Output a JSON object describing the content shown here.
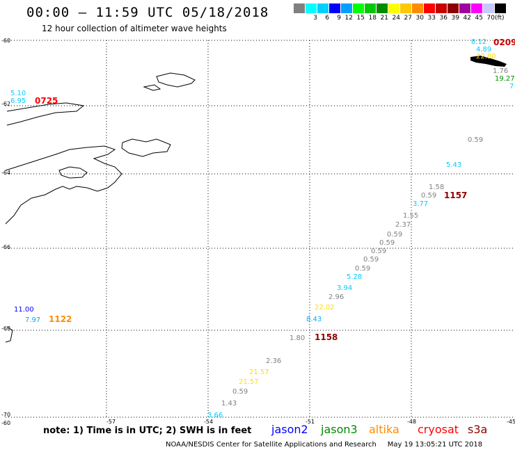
{
  "header": {
    "title": "00:00 – 11:59 UTC 05/18/2018",
    "subtitle": "12 hour collection of altimeter wave heights"
  },
  "scale": {
    "colors": [
      "#808080",
      "#00ffff",
      "#00cfff",
      "#0000ff",
      "#00a0ff",
      "#00ff00",
      "#00c800",
      "#008c00",
      "#ffff00",
      "#ffc800",
      "#ff8c00",
      "#ff0000",
      "#c80000",
      "#8c0000",
      "#a000a0",
      "#ff00ff",
      "#c8c8ff",
      "#000000"
    ],
    "labels": [
      "3",
      "6",
      "9",
      "12",
      "15",
      "18",
      "21",
      "24",
      "27",
      "30",
      "33",
      "36",
      "39",
      "42",
      "45",
      "70"
    ],
    "unit": "(ft)"
  },
  "grid": {
    "lon_labels": [
      "-57",
      "-54",
      "-51",
      "-48",
      "-45"
    ],
    "lat_labels": [
      "-60",
      "-62",
      "-64",
      "-66",
      "-68",
      "-70"
    ],
    "corner_label": "-60"
  },
  "observations": [
    {
      "text": "8.12",
      "color": "#00ccff"
    },
    {
      "text": "4.89",
      "color": "#00ccff"
    },
    {
      "text": "22.80",
      "color": "#ffdd00"
    },
    {
      "text": "0209",
      "color": "#cc0000"
    },
    {
      "text": "1.76",
      "color": "#808080"
    },
    {
      "text": "19.27",
      "color": "#008c00"
    },
    {
      "text": "7",
      "color": "#00ccff"
    },
    {
      "text": "5.10",
      "color": "#00ccff"
    },
    {
      "text": "6.95",
      "color": "#00ccff"
    },
    {
      "text": "0725",
      "color": "#ff0000"
    },
    {
      "text": "0.59",
      "color": "#808080"
    },
    {
      "text": "5.43",
      "color": "#00ccff"
    },
    {
      "text": "1.58",
      "color": "#808080"
    },
    {
      "text": "0.59",
      "color": "#808080"
    },
    {
      "text": "1157",
      "color": "#8c0000"
    },
    {
      "text": "3.77",
      "color": "#00ccff"
    },
    {
      "text": "1.55",
      "color": "#808080"
    },
    {
      "text": "2.37",
      "color": "#808080"
    },
    {
      "text": "0.59",
      "color": "#808080"
    },
    {
      "text": "0.59",
      "color": "#808080"
    },
    {
      "text": "0.59",
      "color": "#808080"
    },
    {
      "text": "0.59",
      "color": "#808080"
    },
    {
      "text": "0.59",
      "color": "#808080"
    },
    {
      "text": "5.28",
      "color": "#00ccff"
    },
    {
      "text": "3.94",
      "color": "#00ccff"
    },
    {
      "text": "2.96",
      "color": "#808080"
    },
    {
      "text": "22.02",
      "color": "#ffdd00"
    },
    {
      "text": "8.43",
      "color": "#00aaff"
    },
    {
      "text": "1.80",
      "color": "#808080"
    },
    {
      "text": "1158",
      "color": "#8c0000"
    },
    {
      "text": "11.00",
      "color": "#0000ff"
    },
    {
      "text": "7.97",
      "color": "#00aaff"
    },
    {
      "text": "1122",
      "color": "#ff8c00"
    },
    {
      "text": "2.36",
      "color": "#808080"
    },
    {
      "text": "21.57",
      "color": "#ffdd00"
    },
    {
      "text": "21.57",
      "color": "#ffdd00"
    },
    {
      "text": "0.59",
      "color": "#808080"
    },
    {
      "text": "1.43",
      "color": "#808080"
    },
    {
      "text": "3.66",
      "color": "#00ccff"
    }
  ],
  "note": "note: 1) Time is in UTC; 2) SWH is in feet",
  "legend": [
    {
      "text": "jason2",
      "color": "#0000ff"
    },
    {
      "text": "jason3",
      "color": "#008c00"
    },
    {
      "text": "altika",
      "color": "#ff8c00"
    },
    {
      "text": "cryosat",
      "color": "#ff0000"
    },
    {
      "text": "s3a",
      "color": "#8c0000"
    }
  ],
  "footer": {
    "credit": "NOAA/NESDIS Center for Satellite Applications and Research",
    "timestamp": "May 19 13:05:21 UTC 2018"
  }
}
